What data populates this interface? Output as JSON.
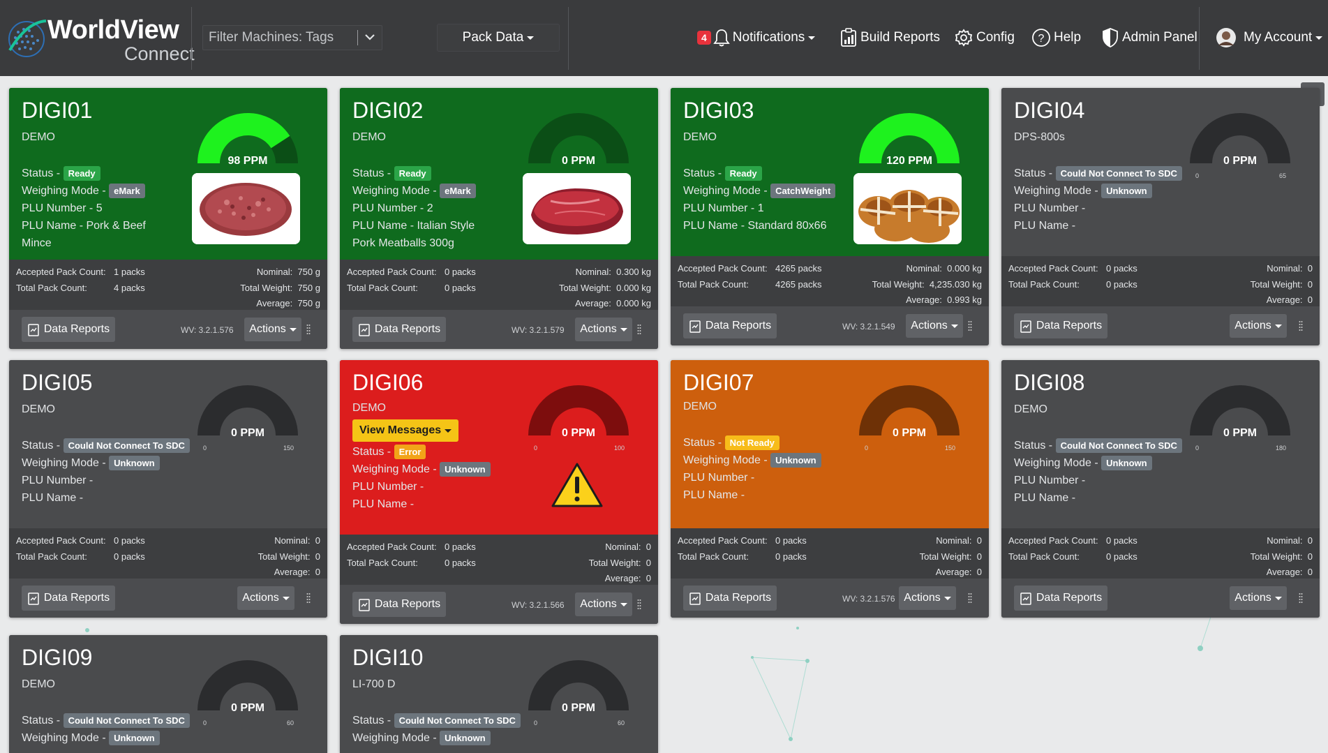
{
  "brand": {
    "name": "WorldView",
    "sub": "Connect"
  },
  "nav": {
    "filter_placeholder": "Filter Machines: Tags",
    "pack_data": "Pack Data",
    "notif_count": "4",
    "notifications": "Notifications",
    "build_reports": "Build Reports",
    "config": "Config",
    "help": "Help",
    "admin_panel": "Admin Panel",
    "my_account": "My Account"
  },
  "labels": {
    "status": "Status -",
    "weighing_mode": "Weighing Mode -",
    "plu_number": "PLU Number -",
    "plu_name": "PLU Name -",
    "accepted": "Accepted Pack Count:",
    "total": "Total Pack Count:",
    "nominal": "Nominal:",
    "total_weight": "Total Weight:",
    "average": "Average:",
    "data_reports": "Data Reports",
    "actions": "Actions",
    "view_messages": "View Messages"
  },
  "colors": {
    "green": "#0f6b1e",
    "red": "#dc1d1d",
    "orange": "#cd5f0d",
    "grey": "#4a4b4d",
    "gauge_active": "#1ef21e"
  },
  "machines": [
    {
      "id": "DIGI01",
      "model": "DEMO",
      "ppm": "98 PPM",
      "ppm_value": 98,
      "gmin": "0",
      "gmax": "120",
      "status": "Ready",
      "mode": "eMark",
      "plu_number": "5",
      "plu_name": "Pork & Beef",
      "plu_name2": "Mince",
      "accepted": "1 packs",
      "total": "4 packs",
      "nominal": "750 g",
      "total_weight": "750 g",
      "average": "750 g",
      "version": "WV: 3.2.1.576",
      "photo": "mince-photo"
    },
    {
      "id": "DIGI02",
      "model": "DEMO",
      "ppm": "0 PPM",
      "ppm_value": 0,
      "gmin": "0",
      "gmax": "60",
      "status": "Ready",
      "mode": "eMark",
      "plu_number": "2",
      "plu_name": "Italian Style",
      "plu_name2": "Pork Meatballs 300g",
      "accepted": "0 packs",
      "total": "0 packs",
      "nominal": "0.300 kg",
      "total_weight": "0.000 kg",
      "average": "0.000 kg",
      "version": "WV: 3.2.1.579",
      "photo": "steak-photo"
    },
    {
      "id": "DIGI03",
      "model": "DEMO",
      "ppm": "120 PPM",
      "ppm_value": 120,
      "gmin": "0",
      "gmax": "120",
      "status": "Ready",
      "mode": "CatchWeight",
      "plu_number": "1",
      "plu_name": "Standard 80x66",
      "plu_name2": "",
      "accepted": "4265 packs",
      "total": "4265 packs",
      "nominal": "0.000 kg",
      "total_weight": "4,235.030 kg",
      "average": "0.993 kg",
      "version": "WV: 3.2.1.549",
      "photo": "buns-photo"
    },
    {
      "id": "DIGI04",
      "model": "DPS-800s",
      "ppm": "0 PPM",
      "ppm_value": 0,
      "gmin": "0",
      "gmax": "65",
      "status": "Could Not Connect To SDC",
      "mode": "Unknown",
      "plu_number": "",
      "plu_name": "",
      "accepted": "0 packs",
      "total": "0 packs",
      "nominal": "0",
      "total_weight": "0",
      "average": "0",
      "version": ""
    },
    {
      "id": "DIGI05",
      "model": "DEMO",
      "ppm": "0 PPM",
      "ppm_value": 0,
      "gmin": "0",
      "gmax": "150",
      "status": "Could Not Connect To SDC",
      "mode": "Unknown",
      "plu_number": "",
      "plu_name": "",
      "accepted": "0 packs",
      "total": "0 packs",
      "nominal": "0",
      "total_weight": "0",
      "average": "0",
      "version": ""
    },
    {
      "id": "DIGI06",
      "model": "DEMO",
      "ppm": "0 PPM",
      "ppm_value": 0,
      "gmin": "0",
      "gmax": "100",
      "status": "Error",
      "mode": "Unknown",
      "plu_number": "",
      "plu_name": "",
      "accepted": "0 packs",
      "total": "0 packs",
      "nominal": "0",
      "total_weight": "0",
      "average": "0",
      "version": "WV: 3.2.1.566"
    },
    {
      "id": "DIGI07",
      "model": "DEMO",
      "ppm": "0 PPM",
      "ppm_value": 0,
      "gmin": "0",
      "gmax": "150",
      "status": "Not Ready",
      "mode": "Unknown",
      "plu_number": "",
      "plu_name": "",
      "accepted": "0 packs",
      "total": "0 packs",
      "nominal": "0",
      "total_weight": "0",
      "average": "0",
      "version": "WV: 3.2.1.576"
    },
    {
      "id": "DIGI08",
      "model": "DEMO",
      "ppm": "0 PPM",
      "ppm_value": 0,
      "gmin": "0",
      "gmax": "180",
      "status": "Could Not Connect To SDC",
      "mode": "Unknown",
      "plu_number": "",
      "plu_name": "",
      "accepted": "0 packs",
      "total": "0 packs",
      "nominal": "0",
      "total_weight": "0",
      "average": "0",
      "version": ""
    },
    {
      "id": "DIGI09",
      "model": "DEMO",
      "ppm": "0 PPM",
      "ppm_value": 0,
      "gmin": "0",
      "gmax": "60",
      "status": "Could Not Connect To SDC",
      "mode": "Unknown"
    },
    {
      "id": "DIGI10",
      "model": "LI-700 D",
      "ppm": "0 PPM",
      "ppm_value": 0,
      "gmin": "0",
      "gmax": "60",
      "status": "Could Not Connect To SDC",
      "mode": "Unknown"
    }
  ]
}
